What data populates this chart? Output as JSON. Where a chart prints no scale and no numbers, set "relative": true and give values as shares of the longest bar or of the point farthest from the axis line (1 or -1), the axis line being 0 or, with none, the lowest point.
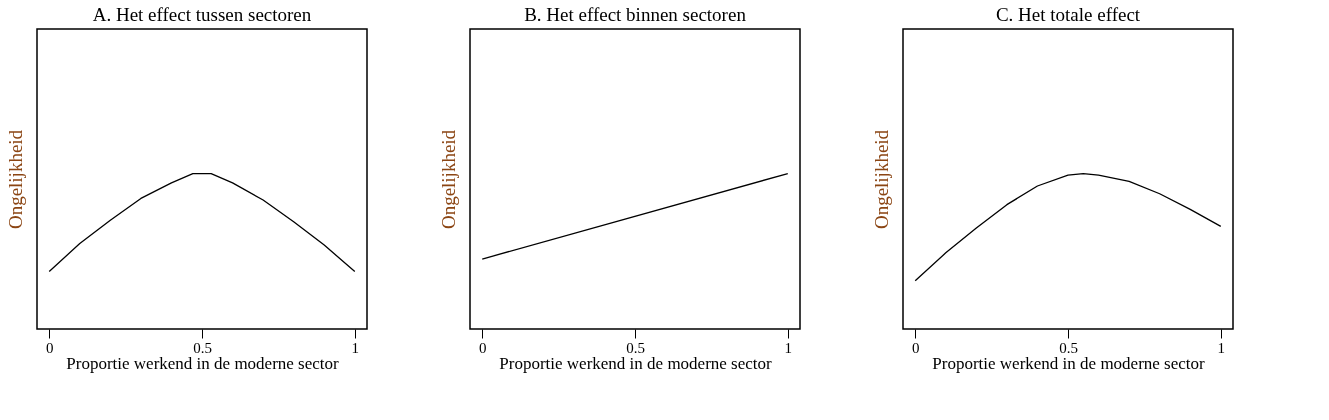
{
  "chart_data": [
    {
      "type": "line",
      "title": "A.  Het effect tussen sectoren",
      "xlabel": "Proportie werkend in de moderne sector",
      "ylabel": "Ongelijkheid",
      "relative": true,
      "xlim": [
        -0.04,
        1.04
      ],
      "xticks": [
        0,
        0.5,
        1
      ],
      "grid": false,
      "x": [
        0,
        0.1,
        0.2,
        0.3,
        0.4,
        0.47,
        0.53,
        0.6,
        0.7,
        0.8,
        0.9,
        1
      ],
      "series": [
        {
          "color": "#000000",
          "values": [
            0.37,
            0.55,
            0.7,
            0.84,
            0.94,
            1,
            1,
            0.94,
            0.83,
            0.69,
            0.54,
            0.37
          ]
        }
      ]
    },
    {
      "type": "line",
      "title": "B.  Het effect binnen sectoren",
      "xlabel": "Proportie werkend in de moderne sector",
      "ylabel": "Ongelijkheid",
      "relative": true,
      "xlim": [
        -0.04,
        1.04
      ],
      "xticks": [
        0,
        0.5,
        1
      ],
      "grid": false,
      "x": [
        0,
        1
      ],
      "series": [
        {
          "color": "#000000",
          "values": [
            0.45,
            1
          ]
        }
      ]
    },
    {
      "type": "line",
      "title": "C.  Het totale effect",
      "xlabel": "Proportie werkend in de moderne sector",
      "ylabel": "Ongelijkheid",
      "relative": true,
      "xlim": [
        -0.04,
        1.04
      ],
      "xticks": [
        0,
        0.5,
        1
      ],
      "grid": false,
      "x": [
        0,
        0.1,
        0.2,
        0.3,
        0.4,
        0.5,
        0.55,
        0.6,
        0.7,
        0.8,
        0.9,
        1
      ],
      "series": [
        {
          "color": "#000000",
          "values": [
            0.31,
            0.49,
            0.65,
            0.8,
            0.92,
            0.99,
            1,
            0.99,
            0.95,
            0.87,
            0.77,
            0.66
          ]
        }
      ]
    }
  ]
}
